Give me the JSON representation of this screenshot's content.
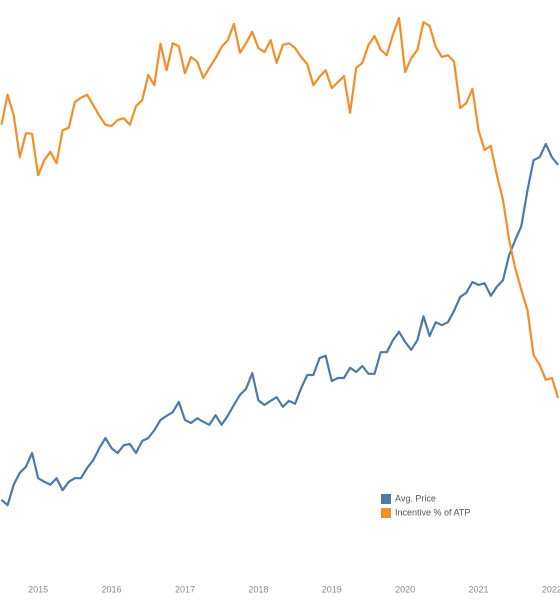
{
  "chart_data": {
    "type": "line",
    "x": [
      2014.5,
      2014.583,
      2014.667,
      2014.75,
      2014.833,
      2014.917,
      2015,
      2015.083,
      2015.167,
      2015.25,
      2015.333,
      2015.417,
      2015.5,
      2015.583,
      2015.667,
      2015.75,
      2015.833,
      2015.917,
      2016,
      2016.083,
      2016.167,
      2016.25,
      2016.333,
      2016.417,
      2016.5,
      2016.583,
      2016.667,
      2016.75,
      2016.833,
      2016.917,
      2017,
      2017.083,
      2017.167,
      2017.25,
      2017.333,
      2017.417,
      2017.5,
      2017.583,
      2017.667,
      2017.75,
      2017.833,
      2017.917,
      2018,
      2018.083,
      2018.167,
      2018.25,
      2018.333,
      2018.417,
      2018.5,
      2018.583,
      2018.667,
      2018.75,
      2018.833,
      2018.917,
      2019,
      2019.083,
      2019.167,
      2019.25,
      2019.333,
      2019.417,
      2019.5,
      2019.583,
      2019.667,
      2019.75,
      2019.833,
      2019.917,
      2020,
      2020.083,
      2020.167,
      2020.25,
      2020.333,
      2020.417,
      2020.5,
      2020.583,
      2020.667,
      2020.75,
      2020.833,
      2020.917,
      2021,
      2021.083,
      2021.167,
      2021.25,
      2021.333,
      2021.417,
      2021.5,
      2021.583,
      2021.667,
      2021.75,
      2021.833,
      2021.917,
      2022,
      2022.083
    ],
    "xlim": [
      2014.48,
      2022.11
    ],
    "xticks": [
      2015,
      2016,
      2017,
      2018,
      2019,
      2020,
      2021,
      2022
    ],
    "ylim": [
      0,
      100
    ],
    "series": [
      {
        "name": "Avg. Price",
        "color": "#4e79a7",
        "values": [
          16.7,
          15.8,
          19.2,
          21.2,
          22.2,
          24.5,
          20.3,
          19.7,
          19.2,
          20.3,
          18.3,
          19.7,
          20.3,
          20.3,
          22,
          23.3,
          25.3,
          27,
          25.3,
          24.5,
          25.8,
          26,
          24.5,
          26.5,
          27,
          28.3,
          30,
          30.7,
          31.3,
          33,
          30,
          29.5,
          30.3,
          29.7,
          29.2,
          30.8,
          29.2,
          30.7,
          32.5,
          34.2,
          35.2,
          37.8,
          33.3,
          32.5,
          33.2,
          33.8,
          32.2,
          33.2,
          32.7,
          35.3,
          37.5,
          37.5,
          40.3,
          40.7,
          36.5,
          37,
          37,
          38.7,
          38,
          39,
          37.7,
          37.7,
          41.3,
          41.3,
          43.3,
          44.7,
          43,
          41.7,
          43.3,
          47.3,
          44,
          46.3,
          45.8,
          46.3,
          48.2,
          50.5,
          51.2,
          53,
          52.5,
          52.8,
          50.7,
          52.2,
          53.3,
          57.5,
          60,
          62.3,
          68.3,
          73.3,
          73.8,
          76,
          73.8,
          72.5
        ]
      },
      {
        "name": "Incentive % of ATP",
        "color": "#f28e2b",
        "values": [
          79.2,
          84.2,
          80.8,
          73.8,
          77.8,
          77.7,
          70.8,
          73.3,
          74.7,
          72.8,
          78.3,
          78.7,
          83,
          83.7,
          84.2,
          82.5,
          80.7,
          79.2,
          79,
          80,
          80.3,
          79.2,
          82.3,
          83.3,
          87.5,
          85.8,
          92.7,
          88.3,
          92.8,
          92.3,
          87.8,
          90.5,
          89.7,
          87,
          88.7,
          90.3,
          92.2,
          93.3,
          96,
          91.2,
          92.8,
          94.7,
          92,
          91.3,
          93.3,
          89.5,
          92.5,
          92.8,
          92,
          90.5,
          89.3,
          85.8,
          87.2,
          88.3,
          85.3,
          86.3,
          87.3,
          81.2,
          88.7,
          89.5,
          92.5,
          94,
          91.7,
          90.8,
          94.2,
          97,
          88,
          90.3,
          91.7,
          96.3,
          95.7,
          92.2,
          90.5,
          90.8,
          89.7,
          82,
          82.8,
          85.2,
          78.3,
          75,
          75.7,
          70.8,
          66.7,
          60,
          55.3,
          51.7,
          48.3,
          40.8,
          39.2,
          36.7,
          37,
          33.7
        ]
      }
    ]
  }
}
